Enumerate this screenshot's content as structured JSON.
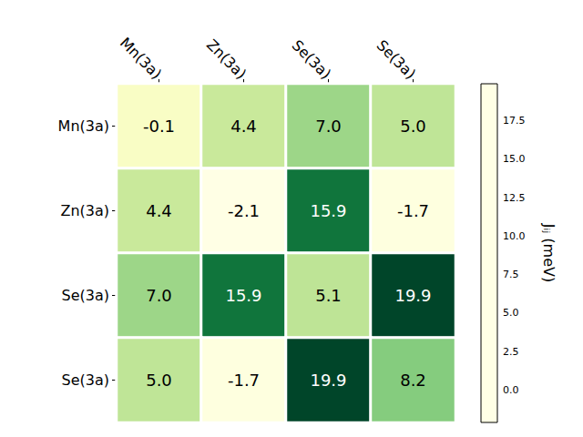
{
  "chart_data": {
    "type": "heatmap",
    "x_categories": [
      "Mn(3a)",
      "Zn(3a)",
      "Se(3a)",
      "Se(3a)"
    ],
    "y_categories": [
      "Mn(3a)",
      "Zn(3a)",
      "Se(3a)",
      "Se(3a)"
    ],
    "values": [
      [
        -0.1,
        4.4,
        7.0,
        5.0
      ],
      [
        4.4,
        -2.1,
        15.9,
        -1.7
      ],
      [
        7.0,
        15.9,
        5.1,
        19.9
      ],
      [
        5.0,
        -1.7,
        19.9,
        8.2
      ]
    ],
    "value_labels": [
      [
        "-0.1",
        "4.4",
        "7.0",
        "5.0"
      ],
      [
        "4.4",
        "-2.1",
        "15.9",
        "-1.7"
      ],
      [
        "7.0",
        "15.9",
        "5.1",
        "19.9"
      ],
      [
        "5.0",
        "-1.7",
        "19.9",
        "8.2"
      ]
    ],
    "data_labels": true,
    "color": "YlGn",
    "colorbar": {
      "label": "Jᵢⱼ (meV)",
      "range": [
        -2.1,
        19.9
      ],
      "ticks": [
        {
          "value": 0,
          "label": "0.0"
        },
        2.5,
        {
          "value": 5,
          "label": "5.0"
        },
        7.5,
        {
          "value": 10,
          "label": "10.0"
        },
        12.5,
        {
          "value": 15,
          "label": "15.0"
        },
        17.5
      ]
    }
  }
}
